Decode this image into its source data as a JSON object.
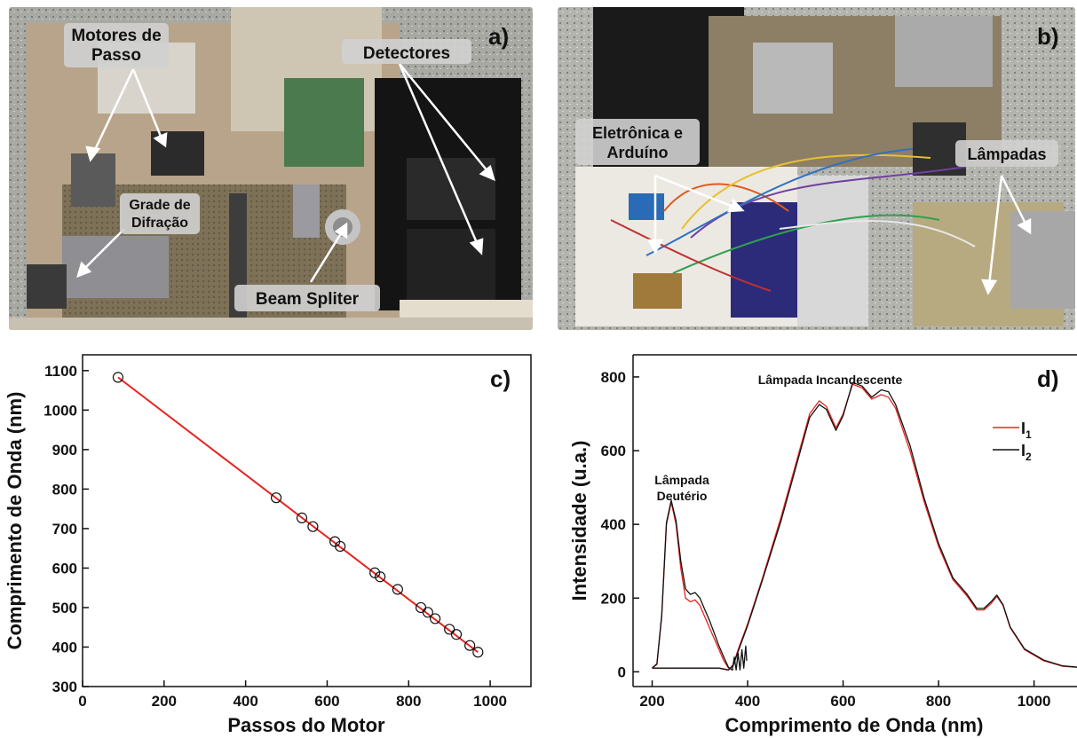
{
  "colors": {
    "red": "#e8231f",
    "black": "#111111"
  },
  "panels": {
    "a": {
      "letter": "a)",
      "labels": {
        "motores_line1": "Motores de",
        "motores_line2": "Passo",
        "detectores": "Detectores",
        "grade_line1": "Grade de",
        "grade_line2": "Difração",
        "beam": "Beam Spliter"
      }
    },
    "b": {
      "letter": "b)",
      "labels": {
        "eletronica_line1": "Eletrônica e",
        "eletronica_line2": "Arduíno",
        "lampadas": "Lâmpadas"
      }
    },
    "c": {
      "letter": "c)"
    },
    "d": {
      "letter": "d)",
      "annot_incandescente": "Lâmpada Incandescente",
      "annot_deuterio_line1": "Lâmpada",
      "annot_deuterio_line2": "Deutério",
      "legend_i1_base": "I",
      "legend_i1_sub": "1",
      "legend_i2_base": "I",
      "legend_i2_sub": "2"
    }
  },
  "chart_data": [
    {
      "panel": "c",
      "type": "scatter",
      "xlabel": "Passos do Motor",
      "ylabel": "Comprimento de Onda (nm)",
      "xlim": [
        0,
        1100
      ],
      "ylim": [
        300,
        1140
      ],
      "xticks": [
        0,
        200,
        400,
        600,
        800,
        1000
      ],
      "yticks": [
        300,
        400,
        500,
        600,
        700,
        800,
        900,
        1000,
        1100
      ],
      "grid": false,
      "points": [
        {
          "x": 87,
          "y": 1083
        },
        {
          "x": 475,
          "y": 778
        },
        {
          "x": 538,
          "y": 727
        },
        {
          "x": 565,
          "y": 705
        },
        {
          "x": 619,
          "y": 667
        },
        {
          "x": 632,
          "y": 655
        },
        {
          "x": 717,
          "y": 588
        },
        {
          "x": 730,
          "y": 578
        },
        {
          "x": 773,
          "y": 546
        },
        {
          "x": 830,
          "y": 500
        },
        {
          "x": 847,
          "y": 488
        },
        {
          "x": 865,
          "y": 472
        },
        {
          "x": 900,
          "y": 445
        },
        {
          "x": 917,
          "y": 432
        },
        {
          "x": 950,
          "y": 404
        },
        {
          "x": 970,
          "y": 387
        }
      ],
      "fit_line": {
        "x": [
          87,
          970
        ],
        "y": [
          1083,
          387
        ]
      }
    },
    {
      "panel": "d",
      "type": "line",
      "xlabel": "Comprimento de Onda (nm)",
      "ylabel": "Intensidade (u.a.)",
      "xlim": [
        160,
        1090
      ],
      "ylim": [
        -40,
        860
      ],
      "xticks": [
        200,
        400,
        600,
        800,
        1000
      ],
      "yticks": [
        0,
        200,
        400,
        600,
        800
      ],
      "grid": false,
      "legend_position": "right",
      "series": [
        {
          "name": "I1",
          "color": "#e8231f",
          "deuterium": [
            [
              200,
              10
            ],
            [
              210,
              20
            ],
            [
              220,
              150
            ],
            [
              230,
              400
            ],
            [
              240,
              460
            ],
            [
              250,
              400
            ],
            [
              260,
              280
            ],
            [
              270,
              200
            ],
            [
              280,
              190
            ],
            [
              290,
              195
            ],
            [
              300,
              180
            ],
            [
              310,
              150
            ],
            [
              320,
              120
            ],
            [
              330,
              90
            ],
            [
              340,
              60
            ],
            [
              350,
              30
            ],
            [
              360,
              10
            ],
            [
              370,
              5
            ]
          ],
          "visible": [
            [
              200,
              10
            ],
            [
              300,
              10
            ],
            [
              340,
              10
            ],
            [
              360,
              5
            ],
            [
              370,
              20
            ],
            [
              380,
              60
            ],
            [
              400,
              130
            ],
            [
              430,
              250
            ],
            [
              470,
              420
            ],
            [
              500,
              560
            ],
            [
              530,
              700
            ],
            [
              550,
              735
            ],
            [
              565,
              720
            ],
            [
              585,
              662
            ],
            [
              600,
              700
            ],
            [
              620,
              780
            ],
            [
              640,
              770
            ],
            [
              660,
              740
            ],
            [
              680,
              752
            ],
            [
              695,
              745
            ],
            [
              710,
              715
            ],
            [
              740,
              600
            ],
            [
              770,
              460
            ],
            [
              800,
              340
            ],
            [
              830,
              250
            ],
            [
              860,
              205
            ],
            [
              880,
              168
            ],
            [
              895,
              168
            ],
            [
              910,
              185
            ],
            [
              922,
              205
            ],
            [
              935,
              180
            ],
            [
              950,
              120
            ],
            [
              980,
              60
            ],
            [
              1020,
              30
            ],
            [
              1060,
              15
            ],
            [
              1090,
              12
            ]
          ]
        },
        {
          "name": "I2",
          "color": "#111111",
          "deuterium": [
            [
              200,
              10
            ],
            [
              210,
              22
            ],
            [
              220,
              155
            ],
            [
              230,
              405
            ],
            [
              240,
              465
            ],
            [
              250,
              410
            ],
            [
              260,
              300
            ],
            [
              270,
              225
            ],
            [
              280,
              210
            ],
            [
              290,
              215
            ],
            [
              300,
              200
            ],
            [
              310,
              170
            ],
            [
              320,
              140
            ],
            [
              330,
              105
            ],
            [
              340,
              70
            ],
            [
              350,
              40
            ],
            [
              360,
              12
            ],
            [
              368,
              5
            ],
            [
              372,
              40
            ],
            [
              376,
              5
            ],
            [
              380,
              50
            ],
            [
              384,
              5
            ],
            [
              388,
              60
            ],
            [
              392,
              10
            ],
            [
              396,
              70
            ],
            [
              398,
              30
            ]
          ],
          "visible": [
            [
              200,
              10
            ],
            [
              300,
              10
            ],
            [
              340,
              10
            ],
            [
              360,
              5
            ],
            [
              370,
              18
            ],
            [
              380,
              55
            ],
            [
              400,
              125
            ],
            [
              430,
              245
            ],
            [
              470,
              410
            ],
            [
              500,
              550
            ],
            [
              530,
              690
            ],
            [
              550,
              725
            ],
            [
              565,
              712
            ],
            [
              585,
              655
            ],
            [
              600,
              695
            ],
            [
              620,
              785
            ],
            [
              640,
              775
            ],
            [
              660,
              745
            ],
            [
              680,
              765
            ],
            [
              695,
              760
            ],
            [
              710,
              725
            ],
            [
              740,
              615
            ],
            [
              770,
              470
            ],
            [
              800,
              348
            ],
            [
              830,
              255
            ],
            [
              860,
              210
            ],
            [
              880,
              172
            ],
            [
              895,
              172
            ],
            [
              910,
              190
            ],
            [
              922,
              208
            ],
            [
              935,
              182
            ],
            [
              950,
              122
            ],
            [
              980,
              62
            ],
            [
              1020,
              32
            ],
            [
              1060,
              16
            ],
            [
              1090,
              13
            ]
          ]
        }
      ]
    }
  ]
}
